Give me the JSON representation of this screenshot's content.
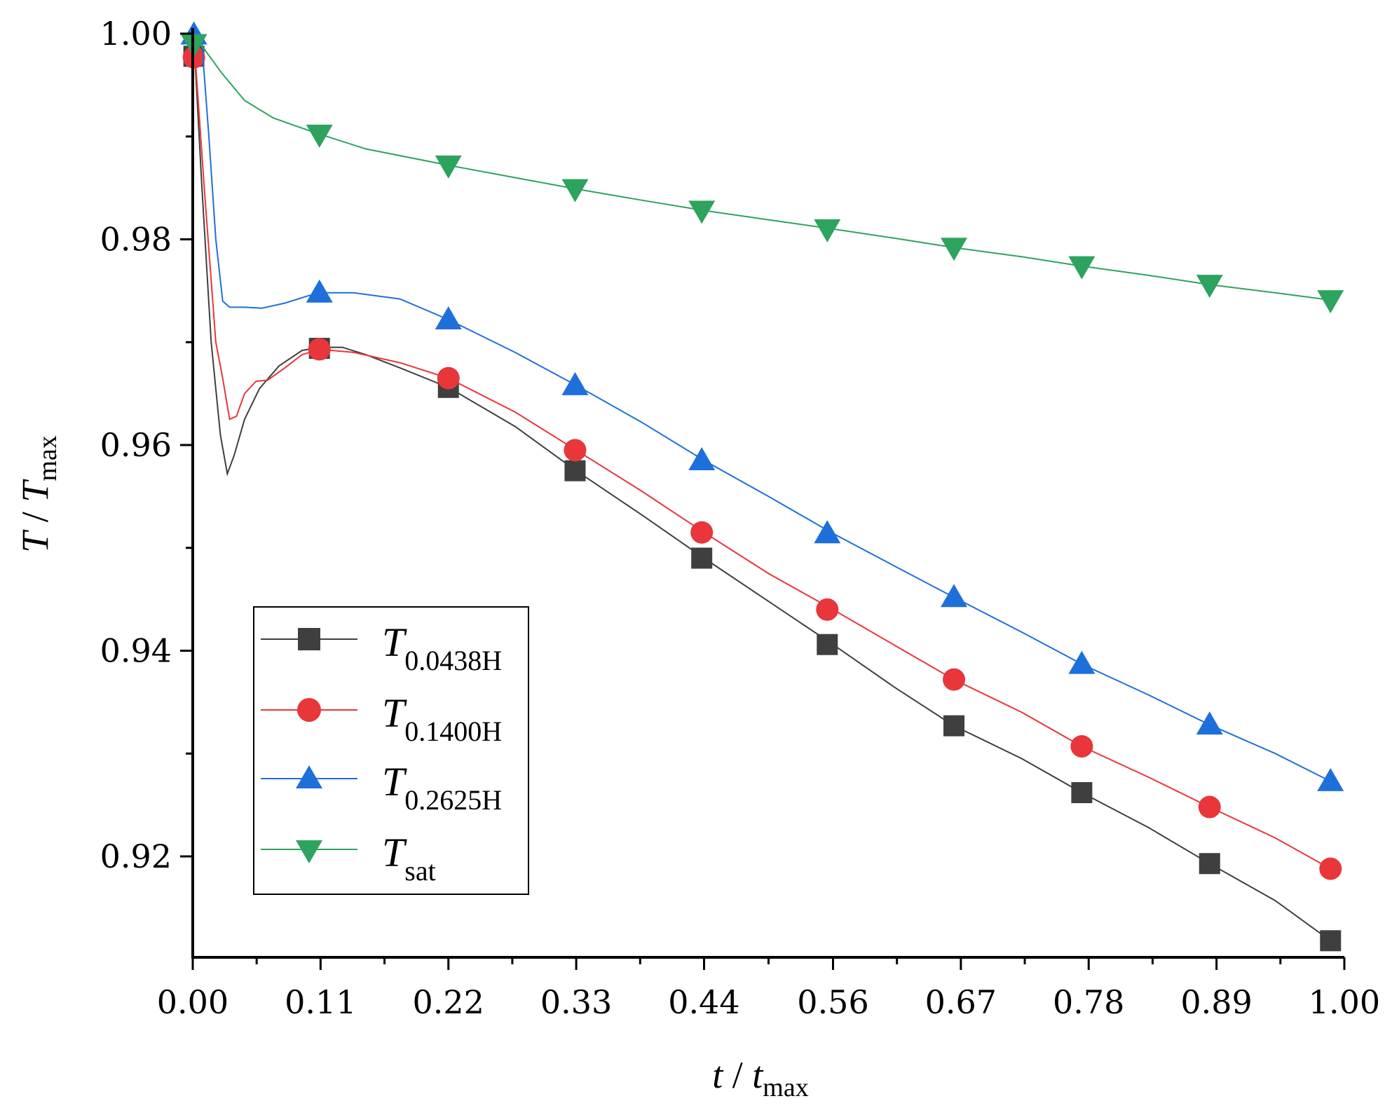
{
  "chart_data": {
    "type": "line",
    "title": "",
    "xlabel": {
      "main": "t",
      "sep": " / ",
      "var": "t",
      "sub": "max"
    },
    "ylabel": {
      "main": "T",
      "sep": " / ",
      "var": "T",
      "sub": "max"
    },
    "xlim": [
      0,
      1.0
    ],
    "ylim": [
      0.91,
      1.0
    ],
    "xticks": [
      {
        "value": 0.0,
        "label": "0.00"
      },
      {
        "value": 0.111,
        "label": "0.11"
      },
      {
        "value": 0.222,
        "label": "0.22"
      },
      {
        "value": 0.333,
        "label": "0.33"
      },
      {
        "value": 0.444,
        "label": "0.44"
      },
      {
        "value": 0.556,
        "label": "0.56"
      },
      {
        "value": 0.667,
        "label": "0.67"
      },
      {
        "value": 0.778,
        "label": "0.78"
      },
      {
        "value": 0.889,
        "label": "0.89"
      },
      {
        "value": 1.0,
        "label": "1.00"
      }
    ],
    "yticks": [
      {
        "value": 1.0,
        "label": "1.00"
      },
      {
        "value": 0.98,
        "label": "0.98"
      },
      {
        "value": 0.96,
        "label": "0.96"
      },
      {
        "value": 0.94,
        "label": "0.94"
      },
      {
        "value": 0.92,
        "label": "0.92"
      }
    ],
    "legend_position": "bottom-left",
    "series": [
      {
        "name": "T0.0438H",
        "label_main": "T",
        "label_sub": "0.0438H",
        "color": "#3f3f3f",
        "marker": "square",
        "line": [
          [
            0.001,
            0.9995
          ],
          [
            0.008,
            0.985
          ],
          [
            0.016,
            0.97
          ],
          [
            0.024,
            0.961
          ],
          [
            0.03,
            0.9572
          ],
          [
            0.036,
            0.959
          ],
          [
            0.045,
            0.9625
          ],
          [
            0.058,
            0.9655
          ],
          [
            0.075,
            0.9677
          ],
          [
            0.095,
            0.9692
          ],
          [
            0.111,
            0.9695
          ],
          [
            0.13,
            0.9695
          ],
          [
            0.15,
            0.9688
          ],
          [
            0.18,
            0.9675
          ],
          [
            0.222,
            0.9656
          ],
          [
            0.28,
            0.9618
          ],
          [
            0.333,
            0.9575
          ],
          [
            0.39,
            0.9532
          ],
          [
            0.444,
            0.949
          ],
          [
            0.5,
            0.9448
          ],
          [
            0.556,
            0.9406
          ],
          [
            0.61,
            0.9364
          ],
          [
            0.661,
            0.9327
          ],
          [
            0.72,
            0.9295
          ],
          [
            0.772,
            0.9262
          ],
          [
            0.83,
            0.9228
          ],
          [
            0.883,
            0.9193
          ],
          [
            0.94,
            0.9157
          ],
          [
            0.988,
            0.9118
          ]
        ],
        "markers": [
          [
            0.001,
            0.9978
          ],
          [
            0.11,
            0.9694
          ],
          [
            0.222,
            0.9656
          ],
          [
            0.332,
            0.9575
          ],
          [
            0.442,
            0.949
          ],
          [
            0.551,
            0.9406
          ],
          [
            0.661,
            0.9327
          ],
          [
            0.772,
            0.9262
          ],
          [
            0.883,
            0.9193
          ],
          [
            0.988,
            0.9118
          ]
        ]
      },
      {
        "name": "T0.1400H",
        "label_main": "T",
        "label_sub": "0.1400H",
        "color": "#e8363b",
        "marker": "circle",
        "line": [
          [
            0.001,
            0.9995
          ],
          [
            0.01,
            0.985
          ],
          [
            0.02,
            0.97
          ],
          [
            0.026,
            0.9665
          ],
          [
            0.032,
            0.9625
          ],
          [
            0.038,
            0.9628
          ],
          [
            0.045,
            0.965
          ],
          [
            0.055,
            0.9662
          ],
          [
            0.065,
            0.9663
          ],
          [
            0.08,
            0.9675
          ],
          [
            0.095,
            0.9688
          ],
          [
            0.111,
            0.9693
          ],
          [
            0.14,
            0.969
          ],
          [
            0.18,
            0.968
          ],
          [
            0.222,
            0.9665
          ],
          [
            0.28,
            0.9632
          ],
          [
            0.333,
            0.9595
          ],
          [
            0.39,
            0.9555
          ],
          [
            0.444,
            0.9515
          ],
          [
            0.5,
            0.9475
          ],
          [
            0.556,
            0.944
          ],
          [
            0.61,
            0.9405
          ],
          [
            0.661,
            0.9372
          ],
          [
            0.72,
            0.934
          ],
          [
            0.772,
            0.9307
          ],
          [
            0.83,
            0.9277
          ],
          [
            0.883,
            0.9248
          ],
          [
            0.94,
            0.9218
          ],
          [
            0.988,
            0.9188
          ]
        ],
        "markers": [
          [
            0.001,
            0.9977
          ],
          [
            0.11,
            0.9693
          ],
          [
            0.222,
            0.9665
          ],
          [
            0.332,
            0.9595
          ],
          [
            0.442,
            0.9515
          ],
          [
            0.551,
            0.944
          ],
          [
            0.661,
            0.9372
          ],
          [
            0.772,
            0.9307
          ],
          [
            0.883,
            0.9248
          ],
          [
            0.988,
            0.9188
          ]
        ]
      },
      {
        "name": "T0.2625H",
        "label_main": "T",
        "label_sub": "0.2625H",
        "color": "#1f6fdb",
        "marker": "triangle-up",
        "line": [
          [
            0.001,
            1.0
          ],
          [
            0.008,
            0.999
          ],
          [
            0.014,
            0.99
          ],
          [
            0.02,
            0.98
          ],
          [
            0.026,
            0.974
          ],
          [
            0.032,
            0.9734
          ],
          [
            0.045,
            0.9734
          ],
          [
            0.06,
            0.9733
          ],
          [
            0.08,
            0.9738
          ],
          [
            0.1,
            0.9745
          ],
          [
            0.111,
            0.9748
          ],
          [
            0.14,
            0.9748
          ],
          [
            0.18,
            0.9742
          ],
          [
            0.222,
            0.9722
          ],
          [
            0.28,
            0.969
          ],
          [
            0.333,
            0.9658
          ],
          [
            0.39,
            0.9622
          ],
          [
            0.444,
            0.9585
          ],
          [
            0.5,
            0.955
          ],
          [
            0.556,
            0.9514
          ],
          [
            0.61,
            0.9482
          ],
          [
            0.661,
            0.9452
          ],
          [
            0.72,
            0.9418
          ],
          [
            0.772,
            0.9387
          ],
          [
            0.83,
            0.9357
          ],
          [
            0.883,
            0.9328
          ],
          [
            0.94,
            0.93
          ],
          [
            0.988,
            0.9273
          ]
        ],
        "markers": [
          [
            0.001,
            0.9999
          ],
          [
            0.11,
            0.9748
          ],
          [
            0.222,
            0.9722
          ],
          [
            0.332,
            0.9658
          ],
          [
            0.442,
            0.9585
          ],
          [
            0.551,
            0.9514
          ],
          [
            0.661,
            0.9452
          ],
          [
            0.772,
            0.9387
          ],
          [
            0.883,
            0.9328
          ],
          [
            0.988,
            0.9273
          ]
        ]
      },
      {
        "name": "Tsat",
        "label_main": "T",
        "label_sub": "sat",
        "color": "#2ea35e",
        "marker": "triangle-down",
        "line": [
          [
            0.001,
            0.9995
          ],
          [
            0.01,
            0.9985
          ],
          [
            0.025,
            0.9962
          ],
          [
            0.045,
            0.9935
          ],
          [
            0.07,
            0.9918
          ],
          [
            0.09,
            0.991
          ],
          [
            0.111,
            0.9902
          ],
          [
            0.15,
            0.9888
          ],
          [
            0.222,
            0.9872
          ],
          [
            0.28,
            0.986
          ],
          [
            0.333,
            0.9849
          ],
          [
            0.39,
            0.9838
          ],
          [
            0.444,
            0.9828
          ],
          [
            0.5,
            0.9819
          ],
          [
            0.556,
            0.981
          ],
          [
            0.61,
            0.9801
          ],
          [
            0.661,
            0.9792
          ],
          [
            0.72,
            0.9783
          ],
          [
            0.772,
            0.9774
          ],
          [
            0.83,
            0.9765
          ],
          [
            0.883,
            0.9756
          ],
          [
            0.94,
            0.9748
          ],
          [
            0.988,
            0.9741
          ]
        ],
        "markers": [
          [
            0.001,
            0.999
          ],
          [
            0.11,
            0.9902
          ],
          [
            0.222,
            0.9872
          ],
          [
            0.332,
            0.9849
          ],
          [
            0.442,
            0.9828
          ],
          [
            0.551,
            0.981
          ],
          [
            0.661,
            0.9792
          ],
          [
            0.772,
            0.9774
          ],
          [
            0.883,
            0.9756
          ],
          [
            0.988,
            0.9741
          ]
        ]
      }
    ]
  }
}
